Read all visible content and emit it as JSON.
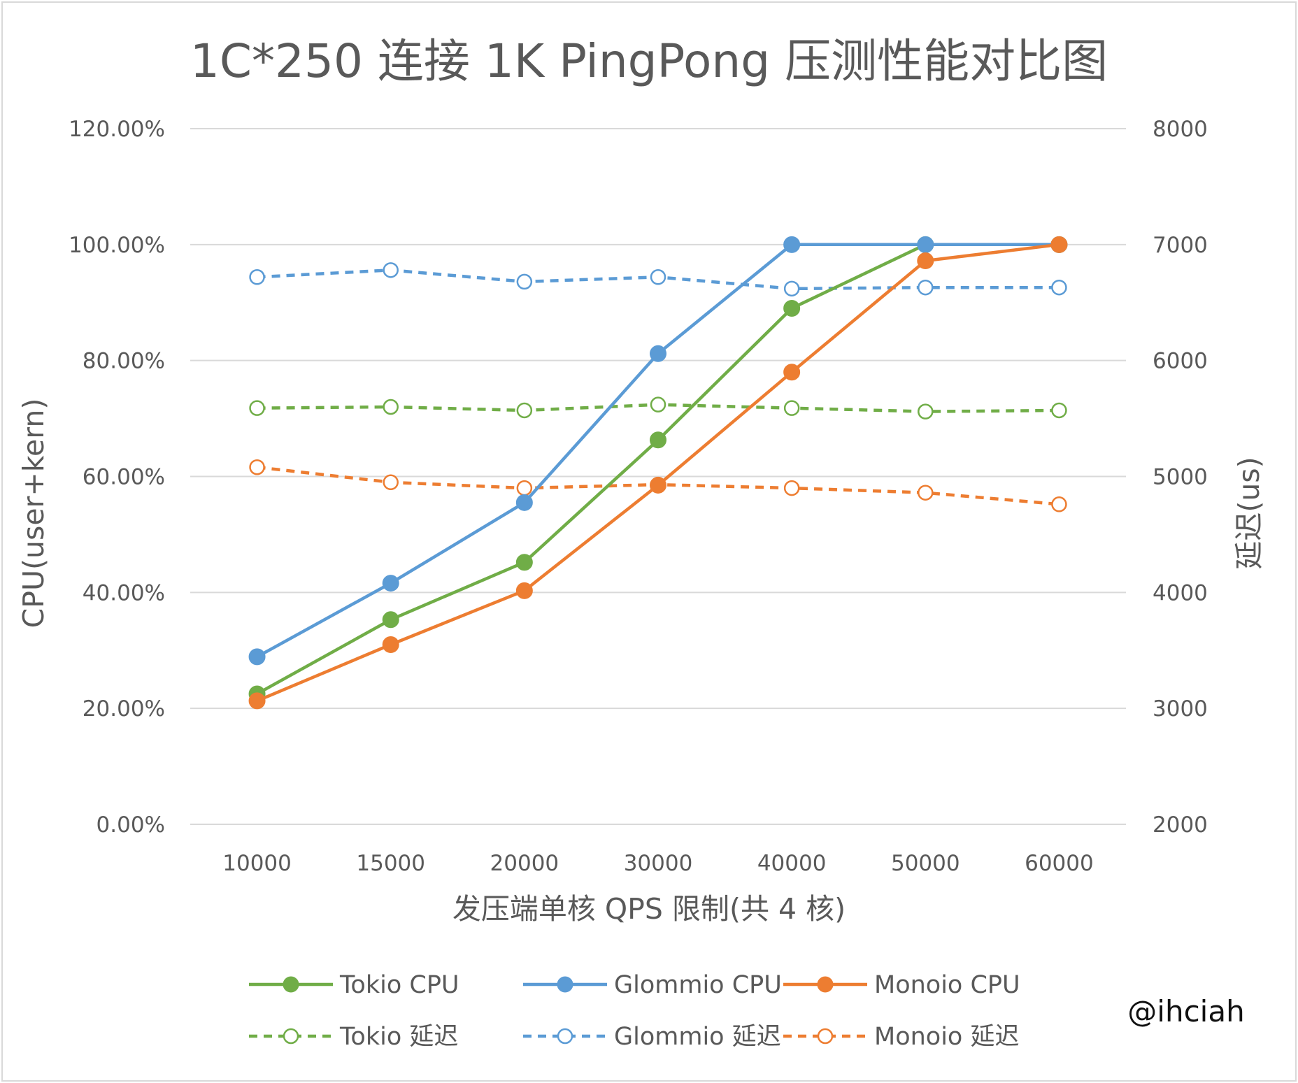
{
  "chart_data": {
    "type": "line",
    "title": "1C*250 连接 1K PingPong 压测性能对比图",
    "xlabel": "发压端单核 QPS 限制(共 4 核)",
    "ylabel": "CPU(user+kern)",
    "y2label": "延迟(us)",
    "categories": [
      "10000",
      "15000",
      "20000",
      "30000",
      "40000",
      "50000",
      "60000"
    ],
    "ylim": [
      0,
      1.2
    ],
    "y_ticks": [
      "0.00%",
      "20.00%",
      "40.00%",
      "60.00%",
      "80.00%",
      "100.00%",
      "120.00%"
    ],
    "y2lim": [
      2000,
      8000
    ],
    "y2_ticks": [
      "2000",
      "3000",
      "4000",
      "5000",
      "6000",
      "7000",
      "8000"
    ],
    "grid": true,
    "legend_position": "bottom",
    "series": [
      {
        "name": "Tokio CPU",
        "axis": "left",
        "color": "#70ad47",
        "style": "solid",
        "marker": "filled",
        "values": [
          0.225,
          0.353,
          0.452,
          0.663,
          0.89,
          1.0,
          1.0
        ]
      },
      {
        "name": "Glommio CPU",
        "axis": "left",
        "color": "#5b9bd5",
        "style": "solid",
        "marker": "filled",
        "values": [
          0.289,
          0.416,
          0.555,
          0.812,
          1.0,
          1.0,
          1.0
        ]
      },
      {
        "name": "Monoio CPU",
        "axis": "left",
        "color": "#ed7d31",
        "style": "solid",
        "marker": "filled",
        "values": [
          0.213,
          0.31,
          0.403,
          0.585,
          0.78,
          0.972,
          1.0
        ]
      },
      {
        "name": "Tokio 延迟",
        "axis": "right",
        "color": "#70ad47",
        "style": "dashed",
        "marker": "hollow",
        "values": [
          5590,
          5600,
          5570,
          5620,
          5590,
          5560,
          5570
        ]
      },
      {
        "name": "Glommio 延迟",
        "axis": "right",
        "color": "#5b9bd5",
        "style": "dashed",
        "marker": "hollow",
        "values": [
          6720,
          6780,
          6680,
          6720,
          6620,
          6630,
          6630
        ]
      },
      {
        "name": "Monoio 延迟",
        "axis": "right",
        "color": "#ed7d31",
        "style": "dashed",
        "marker": "hollow",
        "values": [
          5080,
          4950,
          4900,
          4930,
          4900,
          4860,
          4760
        ]
      }
    ]
  },
  "watermark": "@ihciah"
}
